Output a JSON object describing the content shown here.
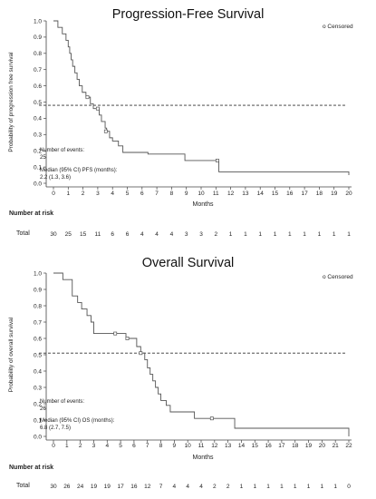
{
  "chart_data": [
    {
      "type": "line",
      "title": "Progression-Free Survival",
      "xlabel": "Months",
      "ylabel": "Probability of progression free survival",
      "xlim": [
        0,
        20
      ],
      "ylim": [
        0,
        1.0
      ],
      "xticks": [
        "0",
        "1",
        "2",
        "3",
        "4",
        "5",
        "6",
        "7",
        "8",
        "9",
        "10",
        "11",
        "12",
        "13",
        "14",
        "15",
        "16",
        "17",
        "18",
        "19",
        "20"
      ],
      "yticks": [
        "0.0",
        "0.1",
        "0.2",
        "0.3",
        "0.4",
        "0.5",
        "0.6",
        "0.7",
        "0.8",
        "0.9",
        "1.0"
      ],
      "median_line": 0.48,
      "legend": "o Censored",
      "series": [
        {
          "x": [
            0,
            0.3,
            0.6,
            0.85,
            1.0,
            1.1,
            1.2,
            1.3,
            1.45,
            1.6,
            1.75,
            1.95,
            2.2,
            2.35,
            2.5,
            2.7,
            2.9,
            3.1,
            3.25,
            3.5,
            3.6,
            3.8,
            4.0,
            4.4,
            4.7,
            5.0,
            6.4,
            8.9,
            11.2,
            20.0
          ],
          "y": [
            1.0,
            0.96,
            0.92,
            0.88,
            0.84,
            0.8,
            0.76,
            0.72,
            0.68,
            0.64,
            0.6,
            0.56,
            0.53,
            0.53,
            0.49,
            0.46,
            0.46,
            0.42,
            0.38,
            0.34,
            0.32,
            0.28,
            0.26,
            0.23,
            0.19,
            0.19,
            0.18,
            0.14,
            0.07,
            0.05
          ],
          "censored": [
            [
              2.3,
              0.53
            ],
            [
              3.0,
              0.46
            ],
            [
              3.55,
              0.32
            ],
            [
              11.1,
              0.14
            ]
          ]
        }
      ],
      "events_label": "Number of events:",
      "events_value": "25",
      "median_label": "Median (95% CI) PFS (months):",
      "median_value": "2.2 (1.3, 3.6)",
      "risk_header": "Number at risk",
      "risk_row_label": "Total",
      "risk_values": [
        "30",
        "25",
        "15",
        "11",
        "6",
        "6",
        "4",
        "4",
        "4",
        "3",
        "3",
        "2",
        "1",
        "1",
        "1",
        "1",
        "1",
        "1",
        "1",
        "1",
        "1"
      ]
    },
    {
      "type": "line",
      "title": "Overall Survival",
      "xlabel": "Months",
      "ylabel": "Probability of overall survival",
      "xlim": [
        0,
        22
      ],
      "ylim": [
        0,
        1.0
      ],
      "xticks": [
        "0",
        "1",
        "2",
        "3",
        "4",
        "5",
        "6",
        "7",
        "8",
        "9",
        "10",
        "11",
        "12",
        "13",
        "14",
        "15",
        "16",
        "17",
        "18",
        "19",
        "20",
        "21",
        "22"
      ],
      "yticks": [
        "0.0",
        "0.1",
        "0.2",
        "0.3",
        "0.4",
        "0.5",
        "0.6",
        "0.7",
        "0.8",
        "0.9",
        "1.0"
      ],
      "median_line": 0.51,
      "legend": "o Censored",
      "series": [
        {
          "x": [
            0,
            0.7,
            1.4,
            1.8,
            2.1,
            2.5,
            2.8,
            3.0,
            4.6,
            5.4,
            6.2,
            6.5,
            6.8,
            7.0,
            7.2,
            7.4,
            7.6,
            7.8,
            8.0,
            8.4,
            8.7,
            9.0,
            10.5,
            13.5,
            22.0
          ],
          "y": [
            1.0,
            0.96,
            0.86,
            0.82,
            0.78,
            0.74,
            0.7,
            0.63,
            0.63,
            0.6,
            0.55,
            0.51,
            0.47,
            0.42,
            0.38,
            0.34,
            0.3,
            0.26,
            0.22,
            0.19,
            0.15,
            0.15,
            0.11,
            0.05,
            0.0
          ],
          "censored": [
            [
              4.6,
              0.63
            ],
            [
              5.5,
              0.6
            ],
            [
              6.5,
              0.51
            ],
            [
              11.8,
              0.11
            ]
          ]
        }
      ],
      "events_label": "Number of events:",
      "events_value": "26",
      "median_label": "Median (95% CI) OS (months):",
      "median_value": "6.8 (2.7, 7.5)",
      "risk_header": "Number at risk",
      "risk_row_label": "Total",
      "risk_values": [
        "30",
        "26",
        "24",
        "19",
        "19",
        "17",
        "16",
        "12",
        "7",
        "4",
        "4",
        "4",
        "2",
        "2",
        "1",
        "1",
        "1",
        "1",
        "1",
        "1",
        "1",
        "1",
        "0"
      ]
    }
  ]
}
